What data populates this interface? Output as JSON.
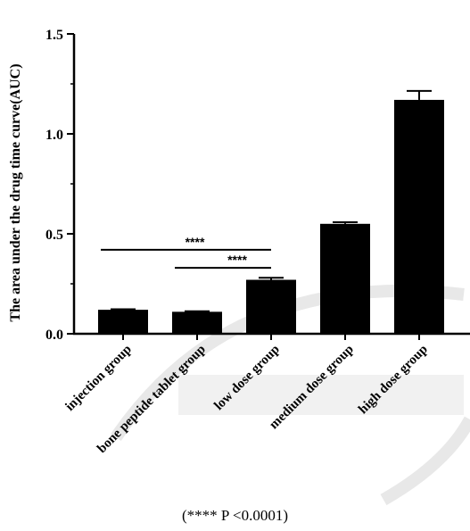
{
  "chart_data": {
    "type": "bar",
    "title": "",
    "ylabel": "The area under the drug time curve(AUC)",
    "xlabel": "",
    "categories": [
      "injection group",
      "bone peptide tablet group",
      "low dose group",
      "medium dose group",
      "high dose group"
    ],
    "values": [
      0.12,
      0.11,
      0.27,
      0.55,
      1.17
    ],
    "errors": [
      0.003,
      0.003,
      0.01,
      0.008,
      0.045
    ],
    "ylim": [
      0,
      1.5
    ],
    "yticks": [
      "0.0",
      "0.5",
      "1.0",
      "1.5"
    ],
    "bar_color": "#000000",
    "significance": [
      {
        "from": "injection group",
        "to": "low dose group",
        "label": "****",
        "y": 0.42
      },
      {
        "from": "bone peptide tablet group",
        "to": "low dose group",
        "label": "****",
        "y": 0.33
      }
    ]
  },
  "caption": "(**** P <0.0001)",
  "watermark_color": "#e8e8e8"
}
